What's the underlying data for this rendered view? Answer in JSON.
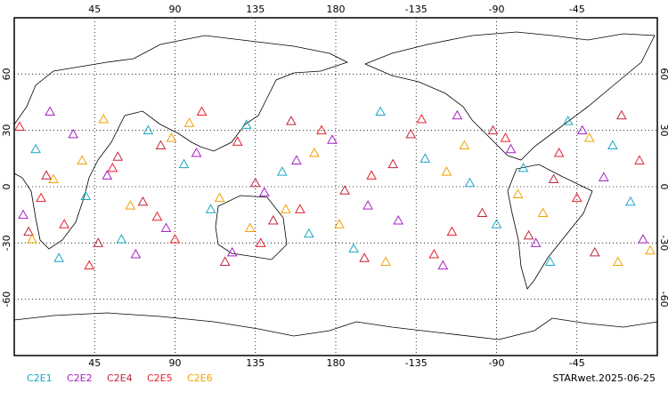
{
  "chart_data": {
    "type": "scatter",
    "footer": "STARwet.2025-06-25",
    "xlim": [
      0,
      360
    ],
    "ylim": [
      -90,
      90
    ],
    "xticks": [
      45,
      90,
      135,
      180,
      {
        "value": 225,
        "label": "-135"
      },
      {
        "value": 270,
        "label": "-90"
      },
      {
        "value": 315,
        "label": "-45"
      }
    ],
    "yticks": [
      60,
      30,
      0,
      -30,
      -60
    ],
    "grid": true,
    "series": [
      {
        "name": "C2E1",
        "color": "#1aa7c2",
        "x": [
          12,
          40,
          75,
          110,
          150,
          190,
          230,
          270,
          310,
          345,
          25,
          95,
          165,
          205,
          255,
          300,
          335,
          60,
          130,
          285
        ],
        "y": [
          20,
          -5,
          30,
          -12,
          8,
          -33,
          15,
          -20,
          35,
          -8,
          -38,
          12,
          -25,
          40,
          2,
          -40,
          22,
          -28,
          33,
          10
        ]
      },
      {
        "name": "C2E2",
        "color": "#a61fc4",
        "x": [
          5,
          33,
          68,
          102,
          140,
          178,
          215,
          248,
          292,
          330,
          20,
          85,
          158,
          198,
          240,
          278,
          352,
          52,
          122,
          318
        ],
        "y": [
          -15,
          28,
          -36,
          18,
          -3,
          25,
          -18,
          38,
          -30,
          5,
          40,
          -22,
          14,
          -10,
          -42,
          20,
          -28,
          6,
          -35,
          30
        ]
      },
      {
        "name": "C2E4",
        "color": "#c2243a",
        "x": [
          18,
          47,
          82,
          118,
          155,
          185,
          222,
          262,
          302,
          340,
          8,
          72,
          145,
          212,
          268,
          325,
          58,
          135,
          196,
          288
        ],
        "y": [
          6,
          -30,
          22,
          -40,
          35,
          -2,
          28,
          -14,
          4,
          38,
          -24,
          -8,
          -18,
          12,
          30,
          -35,
          16,
          2,
          -38,
          -26
        ]
      },
      {
        "name": "C2E5",
        "color": "#ea1f28",
        "x": [
          3,
          28,
          55,
          90,
          125,
          160,
          200,
          235,
          275,
          315,
          350,
          42,
          105,
          172,
          245,
          305,
          15,
          80,
          138,
          228
        ],
        "y": [
          32,
          -20,
          10,
          -28,
          24,
          -12,
          6,
          -36,
          26,
          -6,
          14,
          -42,
          40,
          30,
          -24,
          18,
          -6,
          -16,
          -30,
          36
        ]
      },
      {
        "name": "C2E6",
        "color": "#f2a100",
        "x": [
          10,
          38,
          65,
          98,
          132,
          168,
          208,
          242,
          282,
          322,
          356,
          50,
          115,
          182,
          252,
          296,
          22,
          88,
          152,
          338
        ],
        "y": [
          -28,
          14,
          -10,
          34,
          -22,
          18,
          -40,
          8,
          -4,
          26,
          -34,
          36,
          -6,
          -20,
          22,
          -14,
          4,
          26,
          -12,
          -40
        ]
      }
    ]
  }
}
